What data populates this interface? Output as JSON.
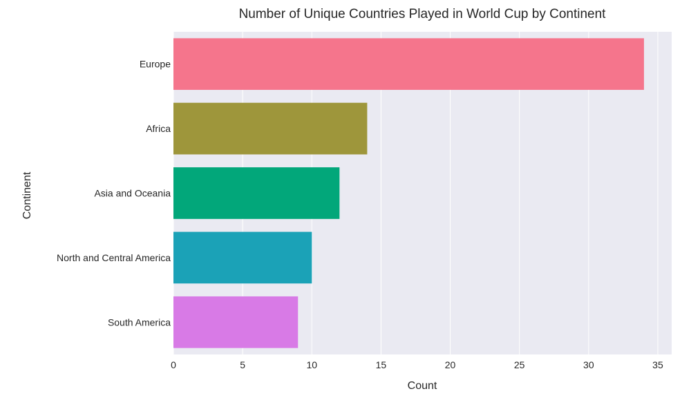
{
  "chart_data": {
    "type": "bar",
    "orientation": "horizontal",
    "title": "Number of Unique Countries Played in World Cup by Continent",
    "xlabel": "Count",
    "ylabel": "Continent",
    "categories": [
      "Europe",
      "Africa",
      "Asia and Oceania",
      "North and Central America",
      "South America"
    ],
    "values": [
      34,
      14,
      12,
      10,
      9
    ],
    "colors": [
      "#f5758c",
      "#9e963b",
      "#02a77a",
      "#1ba2b7",
      "#d87ae6"
    ],
    "xlim": [
      0,
      36
    ],
    "xticks": [
      0,
      5,
      10,
      15,
      20,
      25,
      30,
      35
    ],
    "grid": true,
    "plot_background": "#eaeaf2",
    "grid_color": "#ffffff"
  }
}
